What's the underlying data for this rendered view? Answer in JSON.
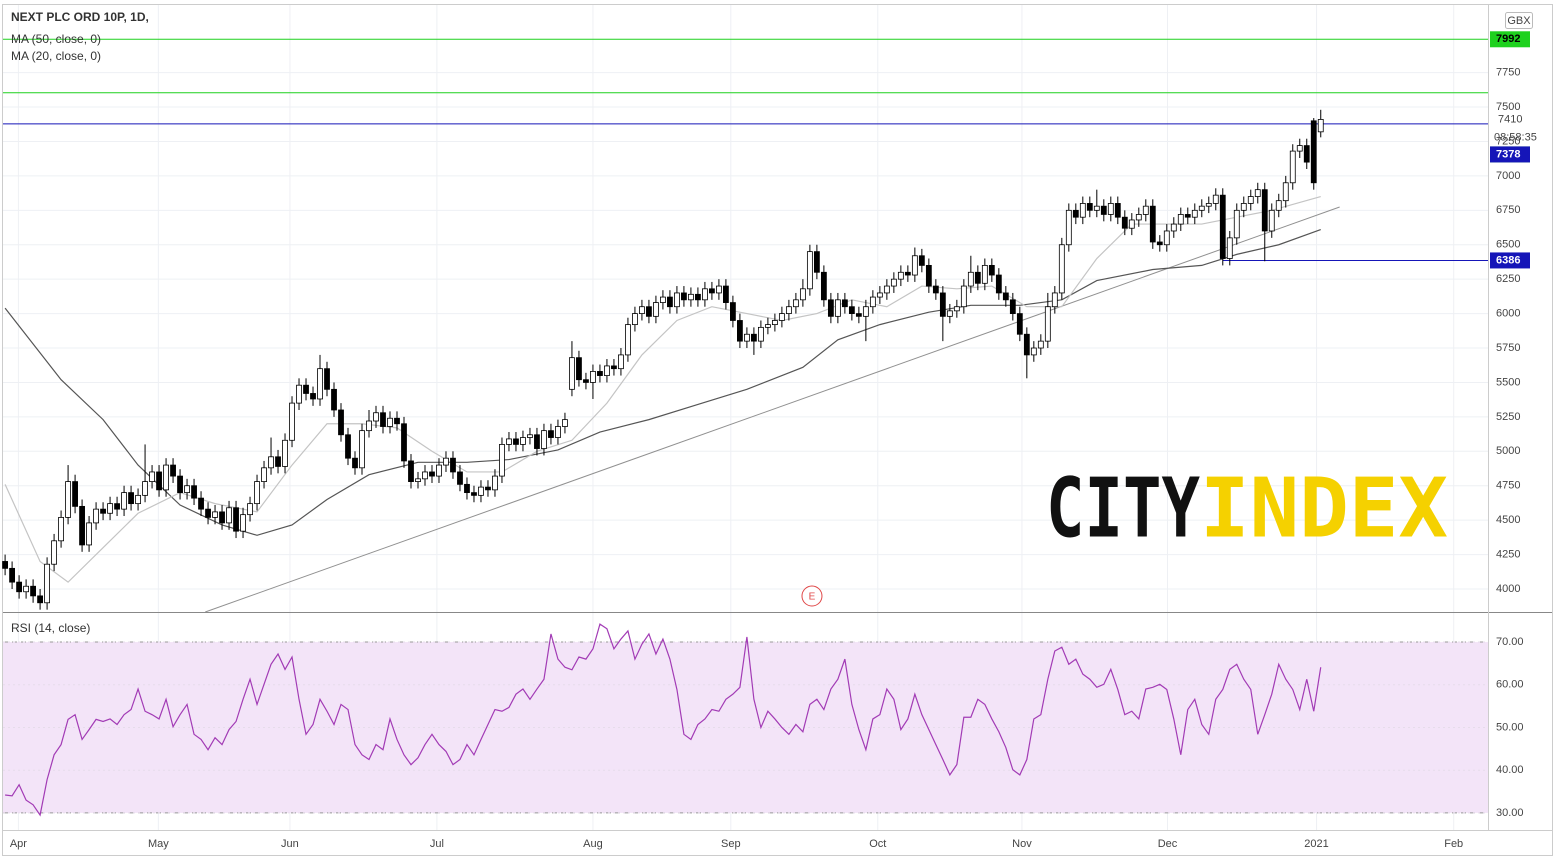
{
  "chart_data": {
    "type": "candlestick",
    "title": "NEXT PLC ORD 10P, 1D,",
    "currency": "GBX",
    "countdown": "08:58:35",
    "xlim": [
      -0.3,
      211.9
    ],
    "xticks": [
      {
        "value": 1.9,
        "label": "Apr"
      },
      {
        "value": 21.9,
        "label": "May"
      },
      {
        "value": 40.7,
        "label": "Jun"
      },
      {
        "value": 61.7,
        "label": "Jul"
      },
      {
        "value": 84,
        "label": "Aug"
      },
      {
        "value": 103.7,
        "label": "Sep"
      },
      {
        "value": 124.7,
        "label": "Oct"
      },
      {
        "value": 145.3,
        "label": "Nov"
      },
      {
        "value": 166.1,
        "label": "Dec"
      },
      {
        "value": 187.4,
        "label": "2021"
      },
      {
        "value": 207,
        "label": "Feb"
      }
    ],
    "ylim": [
      3833,
      8241
    ],
    "yticks": [
      4000,
      4250,
      4500,
      4750,
      5000,
      5250,
      5500,
      5750,
      6000,
      6250,
      6500,
      6750,
      7000,
      7250,
      7500,
      7750
    ],
    "grid": true,
    "up_color": "#ffffff",
    "down_color": "#000000",
    "open": [
      4200,
      4150,
      4050,
      3980,
      4020,
      3950,
      3900,
      4180,
      4350,
      4520,
      4780,
      4600,
      4320,
      4480,
      4580,
      4550,
      4620,
      4580,
      4700,
      4620,
      4680,
      4780,
      4850,
      4720,
      4900,
      4820,
      4700,
      4750,
      4660,
      4580,
      4520,
      4560,
      4480,
      4590,
      4420,
      4540,
      4620,
      4780,
      4880,
      4960,
      4890,
      5080,
      5350,
      5480,
      5420,
      5380,
      5600,
      5450,
      5300,
      5120,
      4950,
      4880,
      5150,
      5220,
      5280,
      5180,
      5240,
      5200,
      4930,
      4780,
      4800,
      4850,
      4820,
      4900,
      4950,
      4850,
      4760,
      4700,
      4680,
      4740,
      4720,
      4820,
      5050,
      5090,
      5050,
      5100,
      5120,
      5020,
      5150,
      5100,
      5180,
      5450,
      5680,
      5520,
      5500,
      5580,
      5550,
      5620,
      5600,
      5700,
      5920,
      6000,
      6050,
      5980,
      6080,
      6120,
      6050,
      6150,
      6100,
      6140,
      6100,
      6180,
      6150,
      6200,
      6080,
      5950,
      5800,
      5850,
      5800,
      5900,
      5920,
      5950,
      6000,
      6050,
      6100,
      6180,
      6450,
      6300,
      6100,
      5980,
      6100,
      6050,
      6000,
      5980,
      6050,
      6120,
      6150,
      6200,
      6250,
      6300,
      6280,
      6420,
      6350,
      6200,
      6150,
      5980,
      6020,
      6050,
      6200,
      6300,
      6220,
      6350,
      6280,
      6150,
      6100,
      6000,
      5850,
      5700,
      5750,
      5800,
      6050,
      6150,
      6500,
      6750,
      6700,
      6800,
      6750,
      6780,
      6720,
      6800,
      6700,
      6620,
      6680,
      6720,
      6780,
      6520,
      6500,
      6600,
      6650,
      6720,
      6700,
      6750,
      6780,
      6800,
      6860,
      6400,
      6550,
      6750,
      6800,
      6850,
      6900,
      6600,
      6750,
      6820,
      6950,
      7180,
      7220,
      7400,
      7320
    ],
    "high": [
      4250,
      4200,
      4100,
      4070,
      4070,
      4000,
      4230,
      4400,
      4570,
      4900,
      4830,
      4650,
      4530,
      4630,
      4630,
      4670,
      4670,
      4750,
      4750,
      4730,
      5050,
      4900,
      4900,
      4950,
      4950,
      4870,
      4800,
      4800,
      4710,
      4630,
      4610,
      4610,
      4640,
      4640,
      4590,
      4670,
      4830,
      4930,
      5100,
      5010,
      5130,
      5400,
      5530,
      5530,
      5470,
      5700,
      5650,
      5500,
      5350,
      5170,
      5000,
      5200,
      5300,
      5330,
      5330,
      5290,
      5290,
      5250,
      4980,
      4850,
      4900,
      4900,
      4950,
      5000,
      5000,
      4900,
      4810,
      4750,
      4790,
      4790,
      4870,
      5100,
      5140,
      5140,
      5150,
      5170,
      5170,
      5200,
      5200,
      5230,
      5280,
      5800,
      5730,
      5570,
      5630,
      5630,
      5670,
      5670,
      5750,
      5970,
      6050,
      6100,
      6100,
      6130,
      6170,
      6170,
      6200,
      6200,
      6190,
      6190,
      6230,
      6230,
      6250,
      6250,
      6130,
      6000,
      5900,
      5900,
      5950,
      5970,
      6000,
      6050,
      6100,
      6150,
      6250,
      6500,
      6500,
      6350,
      6150,
      6150,
      6150,
      6100,
      6050,
      6100,
      6170,
      6200,
      6250,
      6300,
      6350,
      6350,
      6480,
      6470,
      6400,
      6250,
      6200,
      6070,
      6100,
      6250,
      6420,
      6350,
      6400,
      6400,
      6330,
      6200,
      6150,
      6050,
      5900,
      5800,
      5850,
      6150,
      6200,
      6550,
      6800,
      6800,
      6850,
      6850,
      6900,
      6830,
      6850,
      6850,
      6750,
      6730,
      6770,
      6830,
      6830,
      6570,
      6650,
      6700,
      6770,
      6770,
      6800,
      6830,
      6850,
      6910,
      6910,
      6600,
      6800,
      6850,
      6900,
      6950,
      6950,
      6800,
      6870,
      7000,
      7230,
      7270,
      7270,
      7420,
      7480
    ],
    "low": [
      4100,
      4000,
      3930,
      3930,
      3900,
      3850,
      3850,
      4130,
      4300,
      4470,
      4550,
      4270,
      4270,
      4430,
      4500,
      4500,
      4530,
      4530,
      4570,
      4570,
      4630,
      4730,
      4670,
      4670,
      4770,
      4650,
      4650,
      4610,
      4530,
      4470,
      4470,
      4430,
      4430,
      4370,
      4370,
      4490,
      4570,
      4730,
      4830,
      4840,
      4840,
      5030,
      5300,
      5370,
      5330,
      5330,
      5400,
      5250,
      5070,
      4900,
      4830,
      4830,
      5100,
      5170,
      5130,
      5130,
      5150,
      4880,
      4730,
      4730,
      4750,
      4770,
      4770,
      4850,
      4800,
      4710,
      4650,
      4630,
      4630,
      4670,
      4670,
      4770,
      5000,
      5000,
      5000,
      5050,
      4970,
      4970,
      5050,
      5050,
      5130,
      5400,
      5470,
      5450,
      5380,
      5500,
      5500,
      5550,
      5550,
      5650,
      5870,
      5950,
      5930,
      5930,
      6030,
      6000,
      6000,
      6050,
      6050,
      6050,
      6050,
      6100,
      6100,
      6030,
      5900,
      5750,
      5750,
      5700,
      5750,
      5850,
      5870,
      5900,
      5950,
      6000,
      6050,
      6130,
      6250,
      6050,
      5930,
      5930,
      6000,
      5950,
      5930,
      5800,
      6000,
      6070,
      6100,
      6150,
      6200,
      6230,
      6230,
      6300,
      6150,
      6100,
      5800,
      5930,
      5970,
      6000,
      6150,
      6170,
      6170,
      6230,
      6100,
      6050,
      5950,
      5800,
      5530,
      5650,
      5700,
      5750,
      6000,
      6100,
      6450,
      6650,
      6650,
      6700,
      6700,
      6670,
      6670,
      6650,
      6570,
      6570,
      6630,
      6670,
      6470,
      6450,
      6450,
      6550,
      6600,
      6650,
      6650,
      6700,
      6730,
      6750,
      6350,
      6350,
      6500,
      6700,
      6750,
      6800,
      6380,
      6550,
      6700,
      6770,
      6900,
      7130,
      7050,
      6900,
      7280
    ],
    "close": [
      4150,
      4050,
      3980,
      4020,
      3950,
      3900,
      4180,
      4350,
      4520,
      4780,
      4600,
      4320,
      4480,
      4580,
      4550,
      4620,
      4580,
      4700,
      4620,
      4680,
      4780,
      4850,
      4720,
      4900,
      4820,
      4700,
      4750,
      4660,
      4580,
      4520,
      4560,
      4480,
      4590,
      4420,
      4540,
      4620,
      4780,
      4880,
      4960,
      4890,
      5080,
      5350,
      5480,
      5420,
      5380,
      5600,
      5450,
      5300,
      5120,
      4950,
      4880,
      5150,
      5220,
      5280,
      5180,
      5240,
      5200,
      4930,
      4780,
      4800,
      4850,
      4820,
      4900,
      4950,
      4850,
      4760,
      4700,
      4680,
      4740,
      4720,
      4820,
      5050,
      5090,
      5050,
      5100,
      5120,
      5020,
      5150,
      5100,
      5180,
      5230,
      5680,
      5520,
      5500,
      5580,
      5550,
      5620,
      5600,
      5700,
      5920,
      6000,
      6050,
      5980,
      6080,
      6120,
      6050,
      6150,
      6100,
      6140,
      6100,
      6180,
      6150,
      6200,
      6080,
      5950,
      5800,
      5850,
      5800,
      5900,
      5920,
      5950,
      6000,
      6050,
      6100,
      6180,
      6450,
      6300,
      6100,
      5980,
      6100,
      6050,
      6000,
      5980,
      6050,
      6120,
      6150,
      6200,
      6250,
      6300,
      6280,
      6420,
      6350,
      6200,
      6150,
      5980,
      6020,
      6050,
      6200,
      6300,
      6220,
      6350,
      6280,
      6150,
      6100,
      6000,
      5850,
      5700,
      5750,
      5800,
      6050,
      6150,
      6500,
      6750,
      6700,
      6800,
      6750,
      6780,
      6720,
      6800,
      6700,
      6620,
      6680,
      6720,
      6780,
      6520,
      6500,
      6600,
      6650,
      6720,
      6700,
      6750,
      6780,
      6800,
      6860,
      6400,
      6550,
      6750,
      6800,
      6850,
      6900,
      6600,
      6750,
      6820,
      6950,
      7180,
      7220,
      7100,
      6950,
      7410
    ],
    "indicators": [
      {
        "name": "MA (50, close, 0)",
        "color": "#555555",
        "x": [
          0,
          8,
          14,
          19,
          25,
          31,
          36,
          41,
          46,
          52,
          59,
          66,
          72,
          79,
          85,
          92,
          99,
          106,
          114,
          119,
          125,
          132,
          138,
          145,
          151,
          156,
          164,
          171,
          176,
          182,
          188
        ],
        "values": [
          6040,
          5520,
          5230,
          4900,
          4610,
          4465,
          4390,
          4465,
          4650,
          4830,
          4920,
          4920,
          4940,
          5010,
          5140,
          5230,
          5340,
          5450,
          5610,
          5810,
          5920,
          6010,
          6060,
          6060,
          6100,
          6240,
          6320,
          6350,
          6430,
          6500,
          6610
        ]
      },
      {
        "name": "MA (20, close, 0)",
        "color": "#c4c4c4",
        "x": [
          0,
          5,
          9,
          14,
          19,
          25,
          30,
          36,
          41,
          46,
          51,
          56,
          61,
          66,
          71,
          76,
          81,
          86,
          91,
          96,
          101,
          106,
          111,
          116,
          121,
          126,
          131,
          136,
          141,
          146,
          151,
          156,
          161,
          166,
          171,
          176,
          181,
          188
        ],
        "values": [
          4760,
          4200,
          4050,
          4300,
          4550,
          4700,
          4620,
          4560,
          4900,
          5200,
          5200,
          5170,
          5000,
          4850,
          4850,
          5000,
          5080,
          5350,
          5700,
          5950,
          6050,
          6000,
          5950,
          6000,
          6100,
          6050,
          6200,
          6180,
          6200,
          6050,
          6050,
          6400,
          6650,
          6650,
          6650,
          6700,
          6750,
          6850
        ]
      }
    ],
    "hlines": [
      {
        "value": 7992,
        "color": "#1ed11e"
      },
      {
        "value": 7604,
        "color": "#1ed11e"
      },
      {
        "value": 7378,
        "color": "#1515b8"
      },
      {
        "value": 6386,
        "color": "#1515b8",
        "from": 174
      }
    ],
    "trendline": {
      "color": "#909090",
      "x": [
        28.6,
        190.7
      ],
      "values": [
        3833,
        6774
      ]
    },
    "events": [
      {
        "x": 115.3,
        "label": "E"
      }
    ],
    "watermark": [
      {
        "text": "CITY",
        "color": "#111111"
      },
      {
        "text": "INDEX",
        "color": "#f5d100"
      }
    ],
    "rsi": {
      "name": "RSI (14, close)",
      "color": "#a23bb5",
      "band": [
        30,
        70
      ],
      "band_color": "#f3e4f8",
      "ylim": [
        26,
        76.8
      ],
      "yticks": [
        {
          "value": 30,
          "label": "30.00"
        },
        {
          "value": 40,
          "label": "40.00"
        },
        {
          "value": 50,
          "label": "50.00"
        },
        {
          "value": 60,
          "label": "60.00"
        },
        {
          "value": 70,
          "label": "70.00"
        }
      ],
      "values": [
        34.2,
        34,
        36.6,
        33,
        31.9,
        29.5,
        37.8,
        43.6,
        46,
        51.9,
        53,
        47.2,
        49.5,
        51.9,
        51.4,
        52,
        50.7,
        53,
        54.2,
        59,
        53.8,
        53,
        52,
        56.6,
        50.2,
        53,
        55.4,
        48.4,
        47.2,
        44.8,
        47.6,
        46,
        49.5,
        51.4,
        56.6,
        61.3,
        55.4,
        60.1,
        64.8,
        67.2,
        63.6,
        66.5,
        56.6,
        48.4,
        50.7,
        56.6,
        53.8,
        50.7,
        55.4,
        54.2,
        46,
        43.6,
        42.5,
        46,
        44.8,
        52,
        47.2,
        43.6,
        41.3,
        42.9,
        46,
        48.4,
        46,
        44.4,
        41.3,
        42.5,
        46,
        43.6,
        47.2,
        50.7,
        54.2,
        53.8,
        54.7,
        57.8,
        59,
        56.6,
        59,
        61.3,
        71.9,
        66,
        64.1,
        63.5,
        66.5,
        66,
        68.4,
        74.2,
        73.1,
        68.4,
        70.7,
        72.6,
        66,
        69.5,
        71.9,
        67.2,
        70.7,
        66,
        58.9,
        48.4,
        47.2,
        50.7,
        52,
        54.2,
        53.8,
        56.6,
        57.8,
        59.4,
        71.2,
        56.6,
        50,
        53.8,
        52,
        50,
        48.4,
        50.7,
        49,
        55.4,
        56.6,
        54.2,
        59,
        61.3,
        66,
        55.4,
        49.5,
        44.8,
        52,
        53,
        59,
        56.6,
        49.5,
        52,
        57.8,
        53,
        49.5,
        46,
        42.5,
        38.9,
        41.3,
        52.4,
        52.4,
        56.6,
        55.4,
        52,
        49,
        45.3,
        40.1,
        38.9,
        42.5,
        52,
        53,
        61.3,
        67.9,
        68.8,
        64.8,
        66,
        62.5,
        61.3,
        59.4,
        60.1,
        63.6,
        58.9,
        53,
        53.8,
        52,
        59,
        59.4,
        60.1,
        58.9,
        52,
        43.6,
        54.2,
        56.6,
        50.7,
        48.4,
        56.6,
        58.9,
        63.6,
        64.8,
        61.3,
        58.9,
        48.4,
        53,
        57.8,
        64.8,
        61.3,
        58.9,
        54.2,
        61.3,
        53.8,
        64.1
      ]
    }
  }
}
